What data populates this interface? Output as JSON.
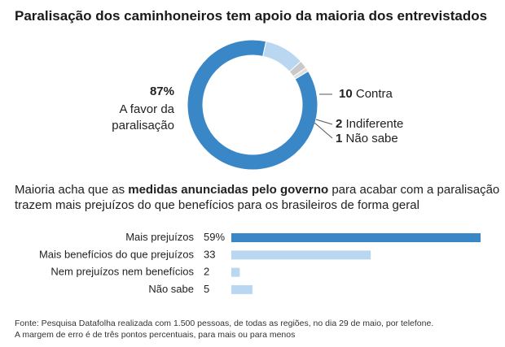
{
  "title": "Paralisação dos caminhoneiros tem apoio da maioria dos entrevistados",
  "donut": {
    "favor_pct": "87%",
    "favor_label_line1": "A favor da",
    "favor_label_line2": "paralisação",
    "contra_num": "10",
    "contra_label": "Contra",
    "indiferente_num": "2",
    "indiferente_label": "Indiferente",
    "naosabe_num": "1",
    "naosabe_label": "Não sabe"
  },
  "subtitle": {
    "part1": "Maioria acha que as ",
    "bold": "medidas anunciadas pelo governo",
    "part2": " para acabar com a paralisação trazem mais prejuízos do que benefícios para os brasileiros de forma geral"
  },
  "footer": {
    "line1": "Fonte: Pesquisa Datafolha realizada com 1.500 pessoas, de todas as regiões, no dia 29 de maio, por telefone.",
    "line2": "A margem de erro é de três pontos percentuais, para mais ou para menos"
  },
  "colors": {
    "dark_blue": "#3a87c8",
    "light_blue": "#b9d7f1",
    "gray": "#c9c9c9",
    "light_gray": "#dedede"
  },
  "chart_data": [
    {
      "type": "pie",
      "categories": [
        "A favor da paralisação",
        "Contra",
        "Indiferente",
        "Não sabe"
      ],
      "values": [
        87,
        10,
        2,
        1
      ],
      "title": "Paralisação dos caminhoneiros tem apoio da maioria dos entrevistados"
    },
    {
      "type": "bar",
      "orientation": "horizontal",
      "categories": [
        "Mais prejuízos",
        "Mais benefícios do que prejuízos",
        "Nem prejuízos nem benefícios",
        "Não sabe"
      ],
      "values": [
        59,
        33,
        2,
        5
      ],
      "value_labels": [
        "59%",
        "33",
        "2",
        "5"
      ],
      "xlim": [
        0,
        59
      ]
    }
  ]
}
